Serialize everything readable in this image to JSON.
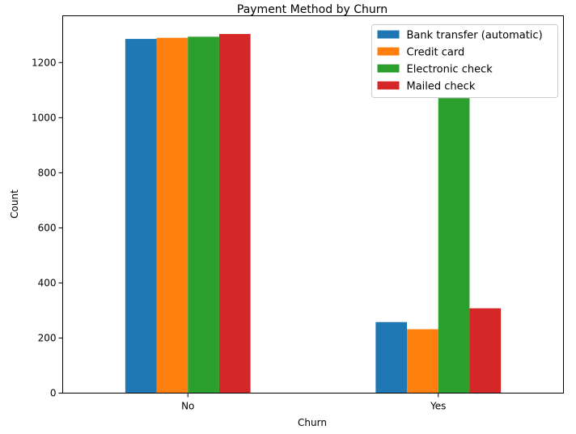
{
  "chart_data": {
    "type": "bar",
    "title": "Payment Method by Churn",
    "xlabel": "Churn",
    "ylabel": "Count",
    "categories": [
      "No",
      "Yes"
    ],
    "series": [
      {
        "name": "Bank transfer (automatic)",
        "color": "#1f77b4",
        "values": [
          1286,
          258
        ]
      },
      {
        "name": "Credit card",
        "color": "#ff7f0e",
        "values": [
          1290,
          232
        ]
      },
      {
        "name": "Electronic check",
        "color": "#2ca02c",
        "values": [
          1294,
          1071
        ]
      },
      {
        "name": "Mailed check",
        "color": "#d62728",
        "values": [
          1304,
          308
        ]
      }
    ],
    "ylim": [
      0,
      1370
    ],
    "yticks": [
      0,
      200,
      400,
      600,
      800,
      1000,
      1200
    ],
    "grid": false,
    "legend_position": "top-right"
  }
}
